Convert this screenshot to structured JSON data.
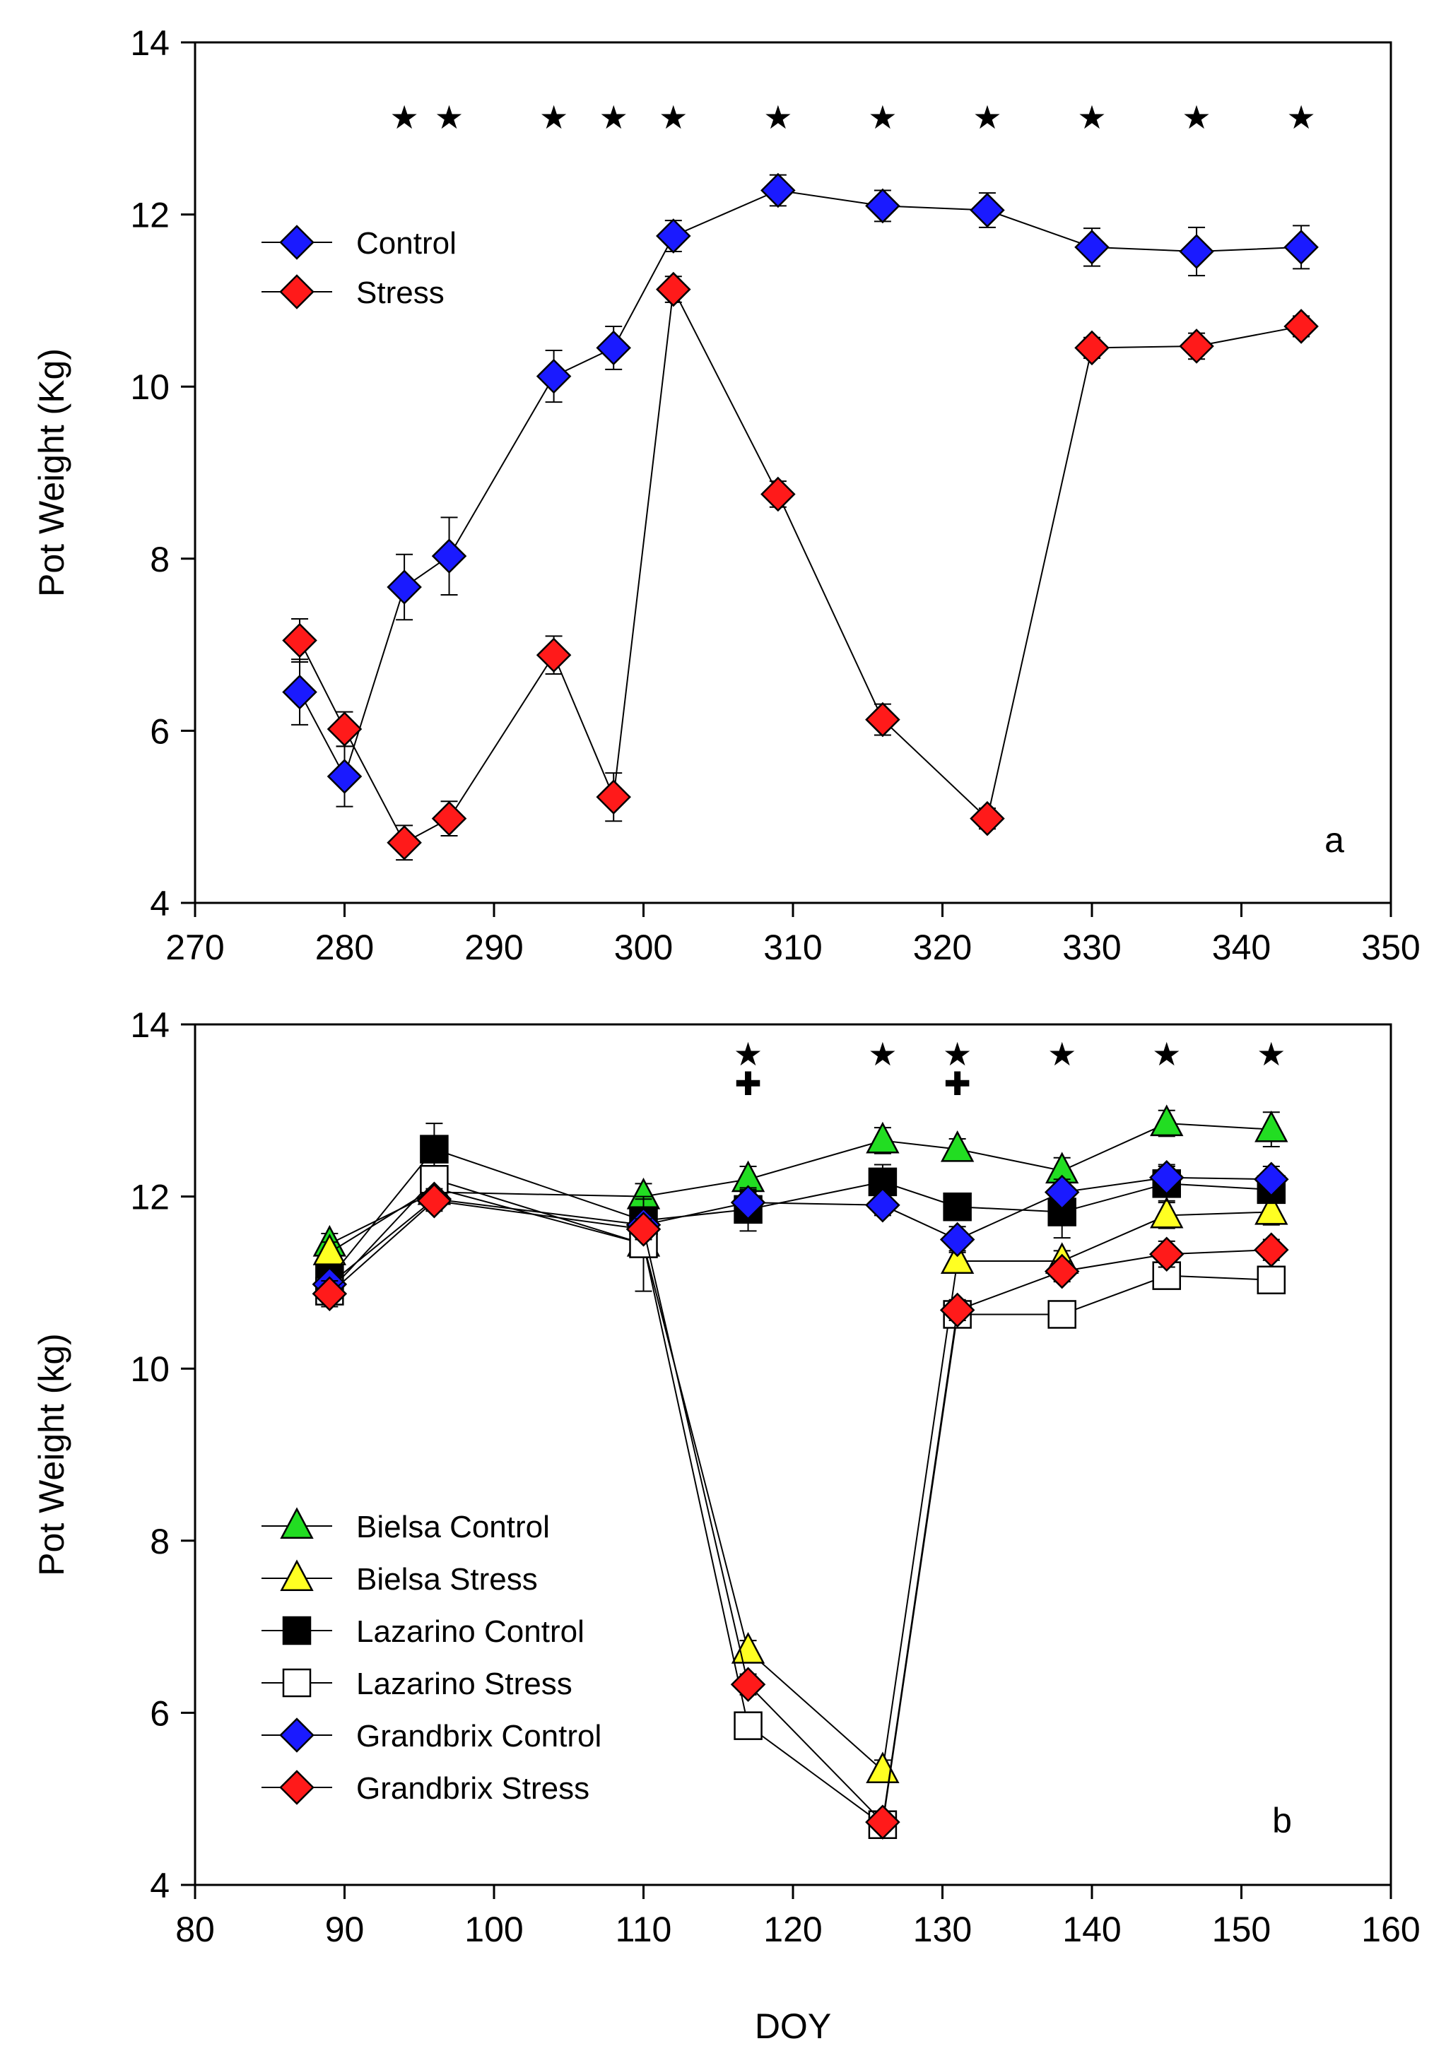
{
  "chart_data": [
    {
      "type": "scatter",
      "panel_label": "a",
      "xlabel": "",
      "ylabel": "Pot Weight (Kg)",
      "xlim": [
        270,
        350
      ],
      "ylim": [
        4,
        14
      ],
      "xticks": [
        "270",
        "280",
        "290",
        "300",
        "310",
        "320",
        "330",
        "340",
        "350"
      ],
      "yticks": [
        "4",
        "6",
        "8",
        "10",
        "12",
        "14"
      ],
      "grid": false,
      "legend_position": "top-left",
      "significance_marks": [
        {
          "x": 284,
          "symbol": "★"
        },
        {
          "x": 287,
          "symbol": "★"
        },
        {
          "x": 294,
          "symbol": "★"
        },
        {
          "x": 298,
          "symbol": "★"
        },
        {
          "x": 302,
          "symbol": "★"
        },
        {
          "x": 309,
          "symbol": "★"
        },
        {
          "x": 316,
          "symbol": "★"
        },
        {
          "x": 323,
          "symbol": "★"
        },
        {
          "x": 330,
          "symbol": "★"
        },
        {
          "x": 337,
          "symbol": "★"
        },
        {
          "x": 344,
          "symbol": "★"
        }
      ],
      "series": [
        {
          "name": "Control",
          "marker": "diamond",
          "color": "#1a1aff",
          "x": [
            277,
            280,
            284,
            287,
            294,
            298,
            302,
            309,
            316,
            323,
            330,
            337,
            344
          ],
          "y": [
            6.45,
            5.47,
            7.67,
            8.03,
            10.12,
            10.45,
            11.75,
            12.28,
            12.1,
            12.05,
            11.62,
            11.57,
            11.62
          ],
          "err": [
            0.38,
            0.35,
            0.38,
            0.45,
            0.3,
            0.25,
            0.18,
            0.18,
            0.18,
            0.2,
            0.22,
            0.28,
            0.25
          ]
        },
        {
          "name": "Stress",
          "marker": "diamond",
          "color": "#ff1a1a",
          "x": [
            277,
            280,
            284,
            287,
            294,
            298,
            302,
            309,
            316,
            323,
            330,
            337,
            344
          ],
          "y": [
            7.05,
            6.02,
            4.7,
            4.98,
            6.88,
            5.23,
            11.13,
            8.75,
            6.13,
            4.98,
            10.45,
            10.47,
            10.7
          ],
          "err": [
            0.25,
            0.2,
            0.2,
            0.2,
            0.22,
            0.28,
            0.15,
            0.15,
            0.18,
            0.12,
            0.12,
            0.15,
            0.12
          ]
        }
      ]
    },
    {
      "type": "scatter",
      "panel_label": "b",
      "xlabel": "DOY",
      "ylabel": "Pot Weight (kg)",
      "xlim": [
        80,
        160
      ],
      "ylim": [
        4,
        14
      ],
      "xticks": [
        "80",
        "90",
        "100",
        "110",
        "120",
        "130",
        "140",
        "150",
        "160"
      ],
      "yticks": [
        "4",
        "6",
        "8",
        "10",
        "12",
        "14"
      ],
      "grid": false,
      "legend_position": "bottom-left",
      "significance_marks": [
        {
          "x": 117,
          "symbol": "★"
        },
        {
          "x": 117,
          "symbol": "✚",
          "row": 2
        },
        {
          "x": 126,
          "symbol": "★"
        },
        {
          "x": 131,
          "symbol": "★"
        },
        {
          "x": 131,
          "symbol": "✚",
          "row": 2
        },
        {
          "x": 138,
          "symbol": "★"
        },
        {
          "x": 145,
          "symbol": "★"
        },
        {
          "x": 152,
          "symbol": "★"
        }
      ],
      "series": [
        {
          "name": "Bielsa Control",
          "marker": "triangle",
          "fill": "#22dd22",
          "x": [
            89,
            96,
            110,
            117,
            126,
            131,
            138,
            145,
            152
          ],
          "y": [
            11.45,
            12.05,
            12.0,
            12.2,
            12.65,
            12.55,
            12.3,
            12.85,
            12.78
          ],
          "err": [
            0.12,
            0.15,
            0.15,
            0.15,
            0.15,
            0.12,
            0.15,
            0.15,
            0.2
          ]
        },
        {
          "name": "Bielsa Stress",
          "marker": "triangle",
          "fill": "#ffff22",
          "x": [
            89,
            96,
            110,
            117,
            126,
            131,
            138,
            145,
            152
          ],
          "y": [
            11.35,
            12.1,
            11.45,
            6.72,
            5.33,
            11.25,
            11.25,
            11.78,
            11.82
          ],
          "err": [
            0.12,
            0.15,
            0.15,
            0.12,
            0.12,
            0.12,
            0.12,
            0.15,
            0.15
          ]
        },
        {
          "name": "Lazarino Control",
          "marker": "square",
          "fill": "#000000",
          "x": [
            89,
            96,
            110,
            117,
            126,
            131,
            138,
            145,
            152
          ],
          "y": [
            11.05,
            12.55,
            11.72,
            11.85,
            12.17,
            11.88,
            11.82,
            12.15,
            12.08
          ],
          "err": [
            0.12,
            0.3,
            0.25,
            0.25,
            0.2,
            0.15,
            0.3,
            0.2,
            0.15
          ]
        },
        {
          "name": "Lazarino Stress",
          "marker": "square",
          "fill": "#ffffff",
          "x": [
            89,
            96,
            110,
            117,
            126,
            131,
            138,
            145,
            152
          ],
          "y": [
            10.9,
            12.2,
            11.45,
            5.85,
            4.7,
            10.63,
            10.63,
            11.08,
            11.03
          ],
          "err": [
            0.12,
            0.15,
            0.55,
            0.12,
            0.1,
            0.12,
            0.1,
            0.12,
            0.12
          ]
        },
        {
          "name": "Grandbrix Control",
          "marker": "diamond",
          "fill": "#1a1aff",
          "x": [
            89,
            96,
            110,
            117,
            126,
            131,
            138,
            145,
            152
          ],
          "y": [
            10.98,
            11.97,
            11.67,
            11.93,
            11.9,
            11.5,
            12.05,
            12.22,
            12.2
          ],
          "err": [
            0.12,
            0.12,
            0.15,
            0.15,
            0.12,
            0.15,
            0.15,
            0.15,
            0.15
          ]
        },
        {
          "name": "Grandbrix Stress",
          "marker": "diamond",
          "fill": "#ff1a1a",
          "x": [
            89,
            96,
            110,
            117,
            126,
            131,
            138,
            145,
            152
          ],
          "y": [
            10.87,
            11.95,
            11.62,
            6.33,
            4.73,
            10.68,
            11.13,
            11.33,
            11.38
          ],
          "err": [
            0.15,
            0.12,
            0.12,
            0.12,
            0.1,
            0.12,
            0.12,
            0.15,
            0.12
          ]
        }
      ]
    }
  ]
}
